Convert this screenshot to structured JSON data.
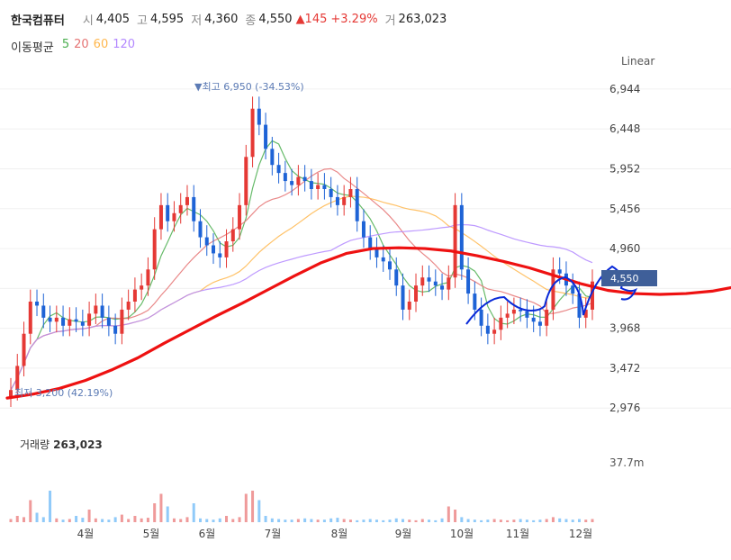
{
  "header": {
    "name": "한국컴퓨터",
    "open_label": "시",
    "open": "4,405",
    "high_label": "고",
    "high": "4,595",
    "low_label": "저",
    "low": "4,360",
    "close_label": "종",
    "close": "4,550",
    "change": "▲145",
    "change_pct": "+3.29%",
    "volume_label": "거",
    "volume": "263,023"
  },
  "ma": {
    "title": "이동평균",
    "p5": "5",
    "p20": "20",
    "p60": "60",
    "p120": "120",
    "c5": "#4caf50",
    "c20": "#e57373",
    "c60": "#ffb74d",
    "c120": "#b388ff"
  },
  "scale_label": "Linear",
  "price_badge": "4,550",
  "volume_panel": {
    "label": "거래량",
    "value": "263,023",
    "axis_max": "37.7m"
  },
  "colors": {
    "up": "#e53935",
    "down": "#1e63d6",
    "trend": "#e11",
    "annotation": "#0a2ad8",
    "badge": "#3f5f99"
  },
  "chart_data": {
    "type": "candlestick",
    "x_ticks": [
      "4월",
      "5월",
      "6월",
      "7월",
      "8월",
      "9월",
      "10월",
      "11월",
      "12월"
    ],
    "y_ticks": [
      6944,
      6448,
      5952,
      5456,
      4960,
      4464,
      3968,
      3472,
      2976
    ],
    "y_tick_labels": [
      "6,944",
      "6,448",
      "5,952",
      "5,456",
      "4,960",
      "",
      "3,968",
      "3,472",
      "2,976"
    ],
    "ylim": [
      2900,
      7100
    ],
    "high_annotation": "▼최고 6,950 (-34.53%)",
    "low_annotation": "최저 3,200 (42.19%)",
    "close_series": [
      [
        0,
        3200
      ],
      [
        1,
        3500
      ],
      [
        2,
        3900
      ],
      [
        3,
        4300
      ],
      [
        4,
        4250
      ],
      [
        5,
        4100
      ],
      [
        6,
        4050
      ],
      [
        7,
        4100
      ],
      [
        8,
        4000
      ],
      [
        9,
        4080
      ],
      [
        10,
        4050
      ],
      [
        11,
        4000
      ],
      [
        12,
        4150
      ],
      [
        13,
        4250
      ],
      [
        14,
        4100
      ],
      [
        15,
        4000
      ],
      [
        16,
        3900
      ],
      [
        17,
        4200
      ],
      [
        18,
        4300
      ],
      [
        19,
        4450
      ],
      [
        20,
        4500
      ],
      [
        21,
        4700
      ],
      [
        22,
        5200
      ],
      [
        23,
        5500
      ],
      [
        24,
        5300
      ],
      [
        25,
        5400
      ],
      [
        26,
        5500
      ],
      [
        27,
        5600
      ],
      [
        28,
        5300
      ],
      [
        29,
        5100
      ],
      [
        30,
        5000
      ],
      [
        31,
        4900
      ],
      [
        32,
        4850
      ],
      [
        33,
        5050
      ],
      [
        34,
        5200
      ],
      [
        35,
        5500
      ],
      [
        36,
        6100
      ],
      [
        37,
        6700
      ],
      [
        38,
        6500
      ],
      [
        39,
        6200
      ],
      [
        40,
        6000
      ],
      [
        41,
        5900
      ],
      [
        42,
        5800
      ],
      [
        43,
        5750
      ],
      [
        44,
        5850
      ],
      [
        45,
        5800
      ],
      [
        46,
        5700
      ],
      [
        47,
        5750
      ],
      [
        48,
        5700
      ],
      [
        49,
        5600
      ],
      [
        50,
        5500
      ],
      [
        51,
        5600
      ],
      [
        52,
        5700
      ],
      [
        53,
        5300
      ],
      [
        54,
        5100
      ],
      [
        55,
        4950
      ],
      [
        56,
        4850
      ],
      [
        57,
        4800
      ],
      [
        58,
        4700
      ],
      [
        59,
        4500
      ],
      [
        60,
        4200
      ],
      [
        61,
        4300
      ],
      [
        62,
        4500
      ],
      [
        63,
        4600
      ],
      [
        64,
        4550
      ],
      [
        65,
        4500
      ],
      [
        66,
        4450
      ],
      [
        67,
        4600
      ],
      [
        68,
        5500
      ],
      [
        69,
        4700
      ],
      [
        70,
        4400
      ],
      [
        71,
        4200
      ],
      [
        72,
        4000
      ],
      [
        73,
        3900
      ],
      [
        74,
        3950
      ],
      [
        75,
        4100
      ],
      [
        76,
        4150
      ],
      [
        77,
        4200
      ],
      [
        78,
        4180
      ],
      [
        79,
        4100
      ],
      [
        80,
        4050
      ],
      [
        81,
        4000
      ],
      [
        82,
        4200
      ],
      [
        83,
        4700
      ],
      [
        84,
        4650
      ],
      [
        85,
        4500
      ],
      [
        86,
        4400
      ],
      [
        87,
        4100
      ],
      [
        88,
        4200
      ],
      [
        89,
        4550
      ]
    ],
    "volume_relative": [
      0.05,
      0.1,
      0.08,
      0.35,
      0.15,
      0.08,
      0.5,
      0.06,
      0.04,
      0.05,
      0.1,
      0.07,
      0.2,
      0.06,
      0.05,
      0.04,
      0.08,
      0.12,
      0.05,
      0.1,
      0.06,
      0.07,
      0.3,
      0.45,
      0.25,
      0.06,
      0.05,
      0.08,
      0.3,
      0.06,
      0.05,
      0.04,
      0.06,
      0.1,
      0.05,
      0.08,
      0.45,
      0.5,
      0.35,
      0.1,
      0.06,
      0.05,
      0.04,
      0.04,
      0.05,
      0.06,
      0.05,
      0.04,
      0.04,
      0.06,
      0.07,
      0.05,
      0.04,
      0.03,
      0.04,
      0.05,
      0.04,
      0.03,
      0.04,
      0.06,
      0.05,
      0.04,
      0.03,
      0.05,
      0.04,
      0.03,
      0.06,
      0.25,
      0.2,
      0.08,
      0.05,
      0.04,
      0.03,
      0.04,
      0.05,
      0.04,
      0.03,
      0.04,
      0.05,
      0.04,
      0.03,
      0.04,
      0.05,
      0.08,
      0.06,
      0.05,
      0.04,
      0.05,
      0.04,
      0.05
    ]
  }
}
